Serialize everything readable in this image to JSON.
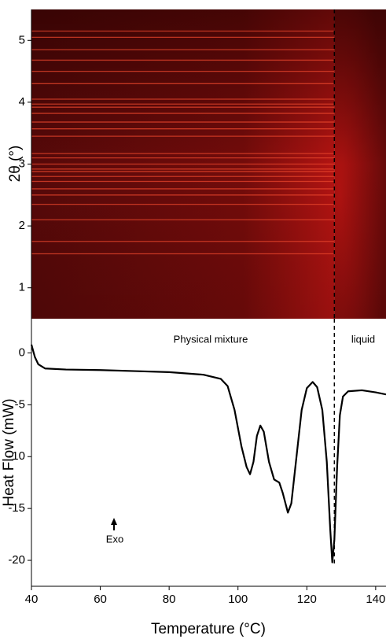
{
  "chart_data": [
    {
      "type": "heatmap",
      "ylabel": "2θ (°)",
      "xlim": [
        40,
        143
      ],
      "ylim": [
        0.5,
        5.5
      ],
      "yticks": [
        1,
        2,
        3,
        4,
        5
      ],
      "peaks": [
        5.15,
        5.05,
        4.85,
        4.68,
        4.5,
        4.3,
        4.05,
        3.97,
        3.92,
        3.82,
        3.68,
        3.57,
        3.45,
        3.17,
        3.1,
        3.0,
        2.92,
        2.88,
        2.8,
        2.72,
        2.6,
        2.5,
        2.35,
        2.1,
        1.75,
        1.55
      ],
      "peak_color": "#e8452c",
      "vline": 128
    },
    {
      "type": "line",
      "xlabel": "Temperature (°C)",
      "ylabel": "Heat Flow (mW)",
      "xlim": [
        40,
        143
      ],
      "ylim": [
        -22.5,
        3.3
      ],
      "xticks": [
        40,
        60,
        80,
        100,
        120,
        140
      ],
      "yticks": [
        0,
        -5,
        -10,
        -15,
        -20
      ],
      "x": [
        40,
        41,
        42,
        44,
        50,
        60,
        70,
        80,
        90,
        95,
        97,
        99,
        101,
        102.5,
        103.5,
        104.5,
        105.5,
        106.5,
        107.5,
        109,
        110.5,
        112,
        113,
        114.5,
        115.5,
        117,
        118.5,
        120,
        121.7,
        123,
        124.5,
        125.8,
        126.8,
        127.4,
        128,
        128.8,
        129.6,
        130.5,
        132,
        136,
        140,
        143
      ],
      "values": [
        0.8,
        -0.4,
        -1.1,
        -1.5,
        -1.6,
        -1.65,
        -1.75,
        -1.85,
        -2.1,
        -2.5,
        -3.2,
        -5.5,
        -9.0,
        -11.0,
        -11.7,
        -10.5,
        -8.0,
        -7.0,
        -7.6,
        -10.5,
        -12.2,
        -12.5,
        -13.5,
        -15.4,
        -14.5,
        -10.0,
        -5.5,
        -3.4,
        -2.8,
        -3.3,
        -5.5,
        -10.5,
        -17.0,
        -20.2,
        -18.0,
        -11.0,
        -6.0,
        -4.2,
        -3.7,
        -3.6,
        -3.8,
        -4.0
      ],
      "color": "#000000",
      "vline": 128,
      "annotations": [
        "Physical mixture",
        "liquid",
        "Exo"
      ]
    }
  ]
}
